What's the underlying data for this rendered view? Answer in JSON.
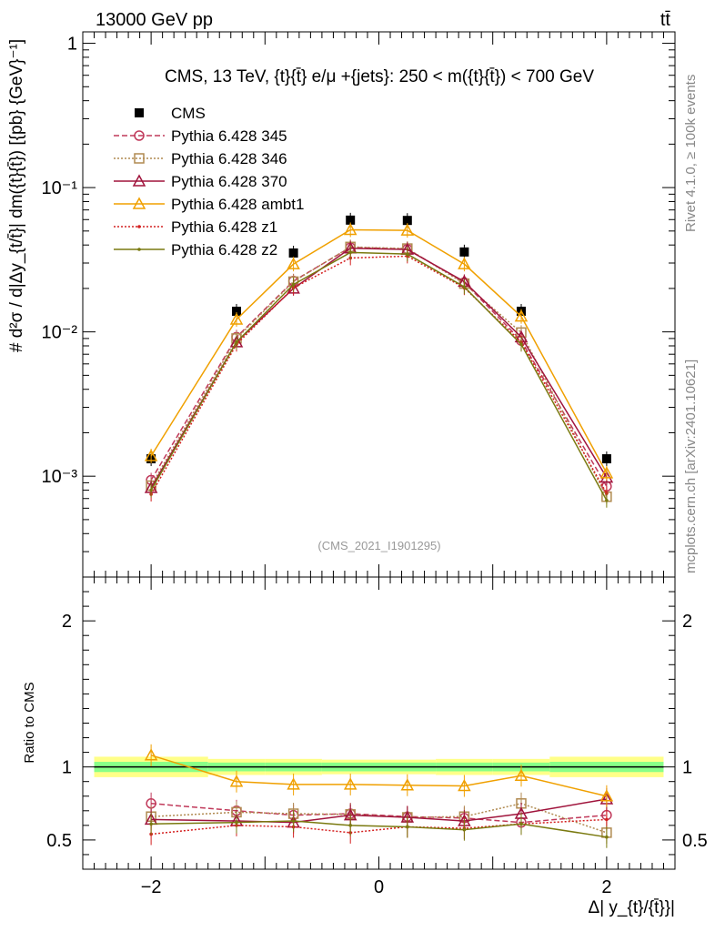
{
  "header": {
    "energy_label": "13000 GeV pp",
    "process_label": "tt̄",
    "rivet_label": "Rivet 4.1.0, ≥ 100k events",
    "site_label": "mcplots.cern.ch [arXiv:2401.10621]"
  },
  "colors": {
    "cms": "#000000",
    "p345": "#c0395a",
    "p346": "#b08a50",
    "p370": "#a0143c",
    "ambt1": "#f0a000",
    "z1": "#d42020",
    "z2": "#7a7a10",
    "band_inner": "#88ff88",
    "band_outer": "#ffff88"
  },
  "chart_data": [
    {
      "type": "line",
      "title": "CMS, 13 TeV, {t}{t̄} e/μ +{jets}: 250 < m({t}{t̄}) < 700 GeV",
      "watermark": "(CMS_2021_I1901295)",
      "ylabel": "# d²σ / d|Δy_{t/t̄}| dm({t}{t̄}) [{pb} {GeV}⁻¹]",
      "yscale": "log",
      "ylim": [
        0.0002,
        1.2
      ],
      "xlim": [
        -2.6,
        2.6
      ],
      "y_ticks": [
        {
          "value": 0.001,
          "label": "10⁻³"
        },
        {
          "value": 0.01,
          "label": "10⁻²"
        },
        {
          "value": 0.1,
          "label": "10⁻¹"
        },
        {
          "value": 1,
          "label": "1"
        }
      ],
      "x": [
        -2.0,
        -1.25,
        -0.75,
        -0.25,
        0.25,
        0.75,
        1.25,
        2.0
      ],
      "series": [
        {
          "name": "CMS",
          "key": "cms",
          "style": "points",
          "marker": "square-filled",
          "values": [
            0.00132,
            0.0139,
            0.0352,
            0.0595,
            0.0592,
            0.0358,
            0.0139,
            0.00132
          ]
        },
        {
          "name": "Pythia 6.428 345",
          "key": "p345",
          "style": "dashed",
          "marker": "circle",
          "values": [
            0.00094,
            0.0092,
            0.0225,
            0.0385,
            0.0375,
            0.022,
            0.0087,
            0.00085
          ]
        },
        {
          "name": "Pythia 6.428 346",
          "key": "p346",
          "style": "dotted",
          "marker": "square",
          "values": [
            0.00086,
            0.009,
            0.0223,
            0.0388,
            0.0378,
            0.0216,
            0.0099,
            0.00072
          ]
        },
        {
          "name": "Pythia 6.428 370",
          "key": "p370",
          "style": "solid",
          "marker": "triangle",
          "values": [
            0.00083,
            0.0085,
            0.02,
            0.038,
            0.0372,
            0.0223,
            0.0092,
            0.00098
          ]
        },
        {
          "name": "Pythia 6.428 ambt1",
          "key": "ambt1",
          "style": "solid",
          "marker": "triangle",
          "values": [
            0.00138,
            0.0122,
            0.0295,
            0.051,
            0.0505,
            0.0295,
            0.0128,
            0.00105
          ]
        },
        {
          "name": "Pythia 6.428 z1",
          "key": "z1",
          "style": "dotted",
          "marker": "dot",
          "values": [
            0.00075,
            0.0082,
            0.0202,
            0.0325,
            0.0335,
            0.0202,
            0.0085,
            0.00076
          ]
        },
        {
          "name": "Pythia 6.428 z2",
          "key": "z2",
          "style": "solid",
          "marker": "dot",
          "values": [
            0.0008,
            0.0085,
            0.0213,
            0.0355,
            0.0346,
            0.0205,
            0.0082,
            0.00068
          ]
        }
      ]
    },
    {
      "type": "line",
      "ylabel": "Ratio to CMS",
      "xlabel": "Δ| y_{t}/{t̄}}|",
      "ylim": [
        0.3,
        2.3
      ],
      "xlim": [
        -2.6,
        2.6
      ],
      "y_ticks": [
        {
          "value": 0.5,
          "label": "0.5"
        },
        {
          "value": 1,
          "label": "1"
        },
        {
          "value": 2,
          "label": "2"
        }
      ],
      "x_ticks": [
        {
          "value": -2,
          "label": "−2"
        },
        {
          "value": 0,
          "label": "0"
        },
        {
          "value": 2,
          "label": "2"
        }
      ],
      "x_edges": [
        -2.5,
        -1.5,
        -1.0,
        -0.5,
        0.0,
        0.5,
        1.0,
        1.5,
        2.5
      ],
      "band_inner": [
        0.035,
        0.03,
        0.03,
        0.03,
        0.03,
        0.03,
        0.03,
        0.035
      ],
      "band_outer": [
        0.07,
        0.055,
        0.055,
        0.05,
        0.05,
        0.055,
        0.055,
        0.07
      ],
      "x": [
        -2.0,
        -1.25,
        -0.75,
        -0.25,
        0.25,
        0.75,
        1.25,
        2.0
      ],
      "series": [
        {
          "name": "Pythia 6.428 345",
          "key": "p345",
          "style": "dashed",
          "marker": "circle",
          "values": [
            0.75,
            0.7,
            0.67,
            0.68,
            0.66,
            0.65,
            0.62,
            0.67
          ]
        },
        {
          "name": "Pythia 6.428 346",
          "key": "p346",
          "style": "dotted",
          "marker": "square",
          "values": [
            0.66,
            0.69,
            0.68,
            0.675,
            0.655,
            0.66,
            0.75,
            0.55
          ]
        },
        {
          "name": "Pythia 6.428 370",
          "key": "p370",
          "style": "solid",
          "marker": "triangle",
          "values": [
            0.64,
            0.63,
            0.62,
            0.67,
            0.655,
            0.63,
            0.68,
            0.78
          ]
        },
        {
          "name": "Pythia 6.428 ambt1",
          "key": "ambt1",
          "style": "solid",
          "marker": "triangle",
          "values": [
            1.08,
            0.9,
            0.88,
            0.88,
            0.875,
            0.87,
            0.94,
            0.8
          ]
        },
        {
          "name": "Pythia 6.428 z1",
          "key": "z1",
          "style": "dotted",
          "marker": "dot",
          "values": [
            0.54,
            0.6,
            0.59,
            0.55,
            0.59,
            0.58,
            0.61,
            0.64
          ]
        },
        {
          "name": "Pythia 6.428 z2",
          "key": "z2",
          "style": "solid",
          "marker": "dot",
          "values": [
            0.61,
            0.62,
            0.63,
            0.6,
            0.59,
            0.57,
            0.61,
            0.52
          ]
        }
      ]
    }
  ]
}
